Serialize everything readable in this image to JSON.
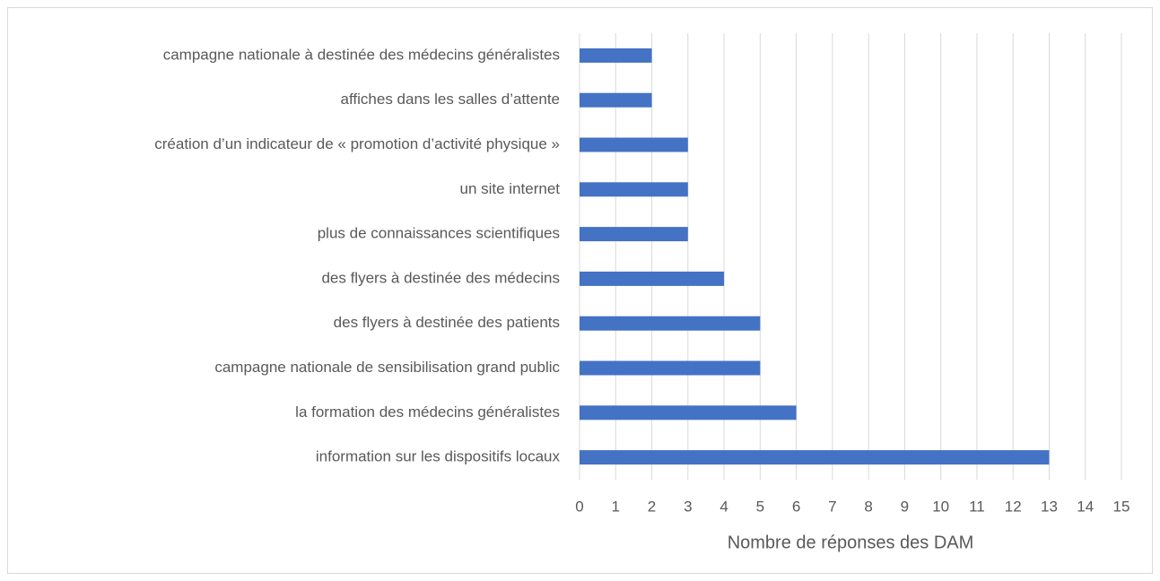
{
  "chart_data": {
    "type": "bar",
    "orientation": "horizontal",
    "categories": [
      "campagne nationale à destinée des médecins généralistes",
      "affiches dans les salles d’attente",
      "création d’un indicateur de « promotion d’activité physique »",
      "un site internet",
      "plus de connaissances scientifiques",
      "des flyers à destinée des médecins",
      "des flyers à destinée des patients",
      "campagne nationale de sensibilisation grand public",
      "la formation des médecins généralistes",
      "information sur les dispositifs locaux"
    ],
    "values": [
      2,
      2,
      3,
      3,
      3,
      4,
      5,
      5,
      6,
      13
    ],
    "color": "#4472c4",
    "xlabel": "Nombre de réponses des DAM",
    "xlim": [
      0,
      15
    ],
    "xticks": [
      0,
      1,
      2,
      3,
      4,
      5,
      6,
      7,
      8,
      9,
      10,
      11,
      12,
      13,
      14,
      15
    ],
    "grid": true
  }
}
